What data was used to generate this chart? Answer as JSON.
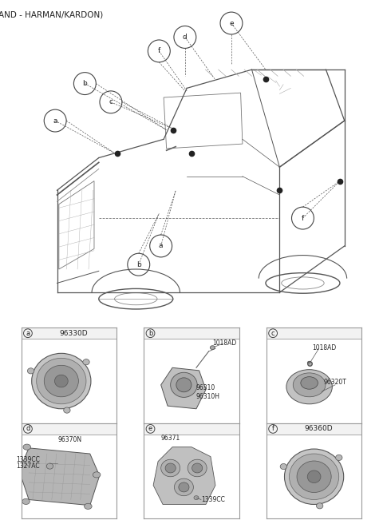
{
  "title": "(SPEAKER BRAND - HARMAN/KARDON)",
  "title_fontsize": 7.5,
  "title_color": "#222222",
  "bg_color": "#ffffff",
  "grid_color": "#999999",
  "text_color": "#222222",
  "cells": [
    {
      "id": "a",
      "part": "96330D",
      "row": 0,
      "col": 0
    },
    {
      "id": "b",
      "part": "",
      "row": 0,
      "col": 1
    },
    {
      "id": "c",
      "part": "",
      "row": 0,
      "col": 2
    },
    {
      "id": "d",
      "part": "",
      "row": 1,
      "col": 0
    },
    {
      "id": "e",
      "part": "",
      "row": 1,
      "col": 1
    },
    {
      "id": "f",
      "part": "96360D",
      "row": 1,
      "col": 2
    }
  ]
}
